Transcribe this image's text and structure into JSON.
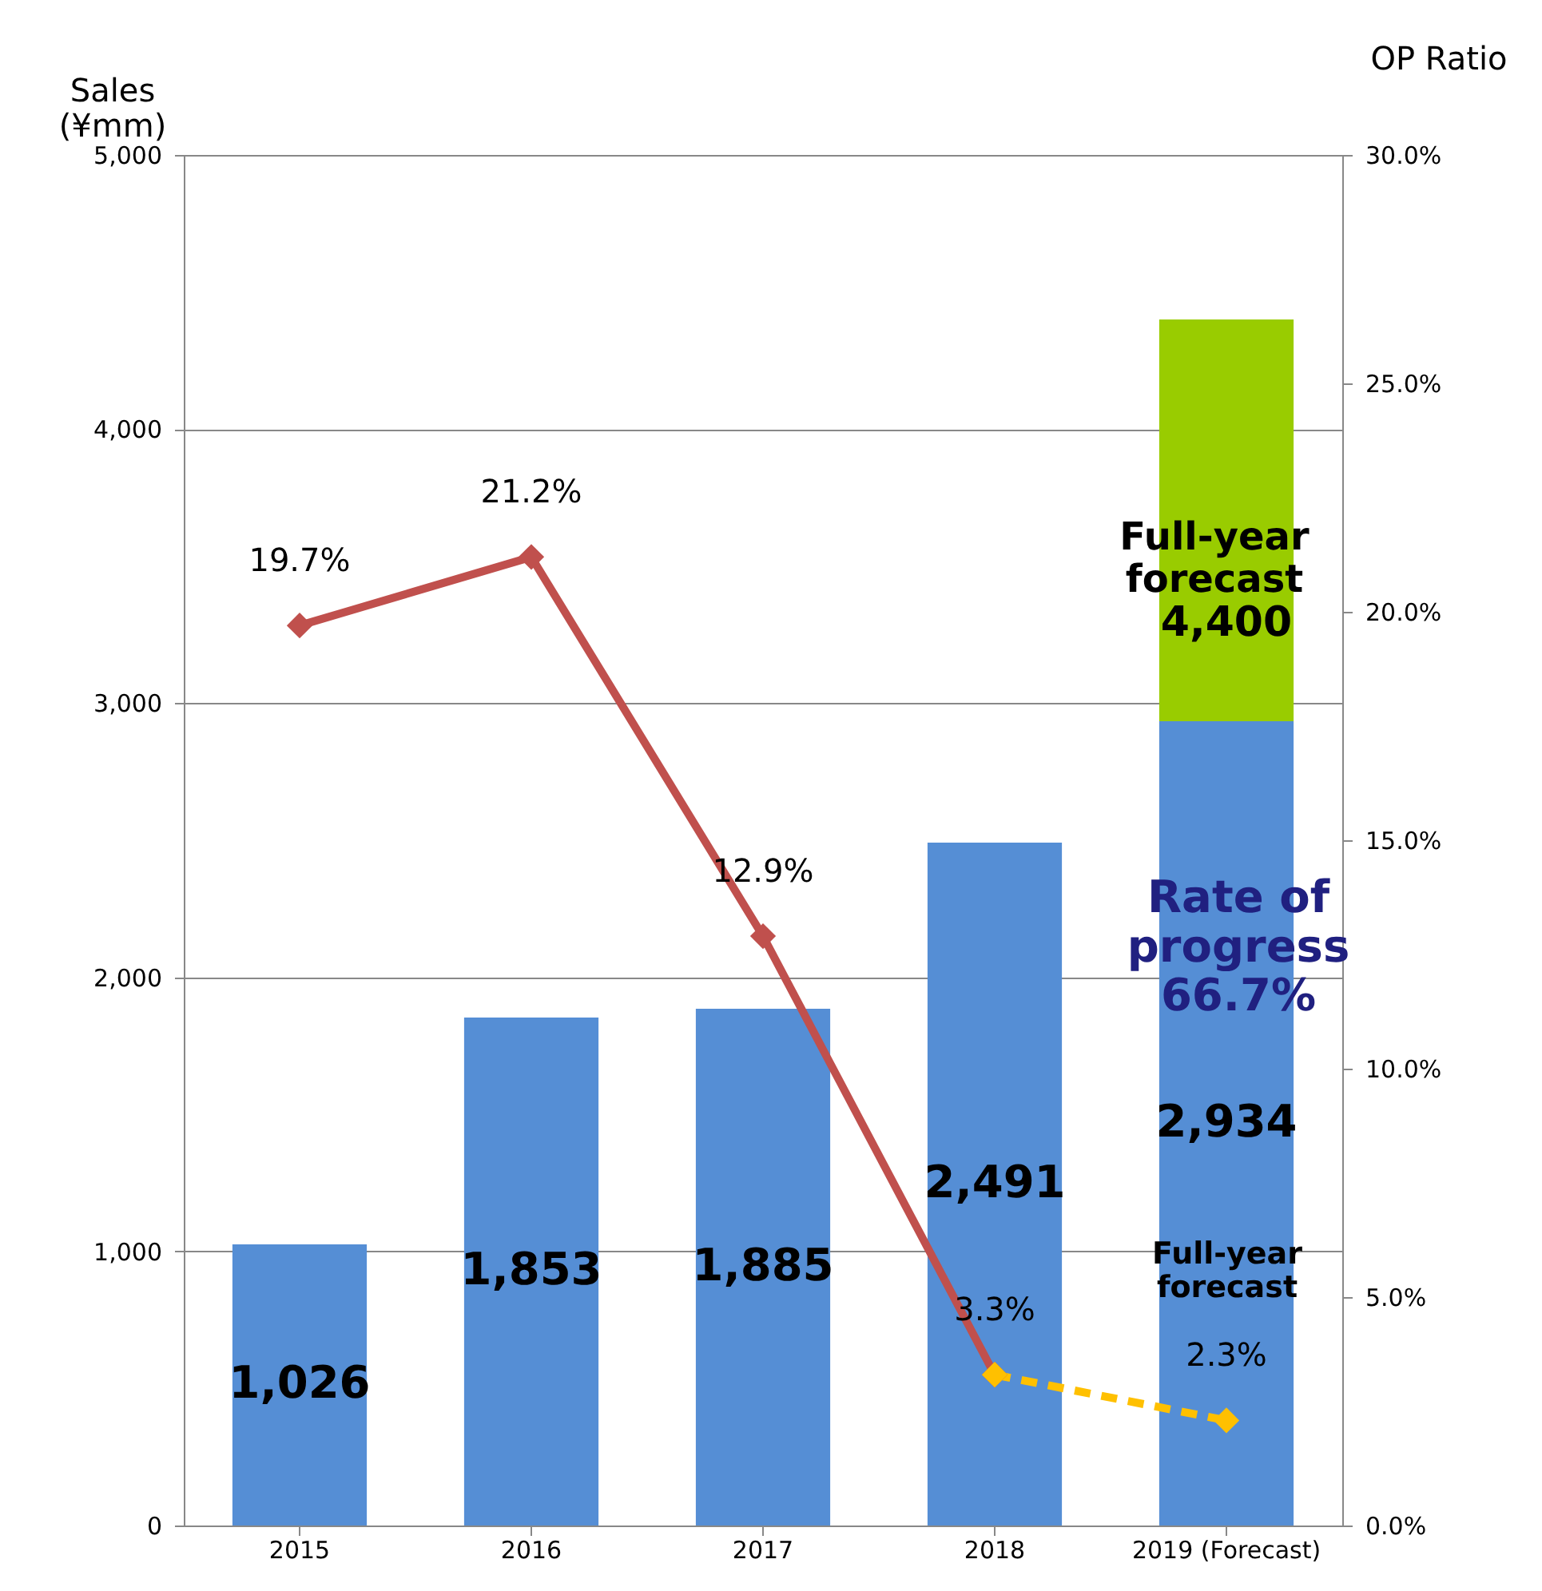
{
  "chart_data": {
    "type": "bar",
    "stacked": true,
    "ylabel": "Sales\n(¥mm)",
    "y2label": "OP Ratio",
    "categories": [
      "2015",
      "2016",
      "2017",
      "2018",
      "2019 (Forecast)"
    ],
    "series": [
      {
        "color": "#558ed5",
        "values": [
          1026,
          1853,
          1885,
          2491,
          2934
        ],
        "value_labels": [
          "1,026",
          "1,853",
          "1,885",
          "2,491",
          "2,934"
        ]
      },
      {
        "color": "#99cc00",
        "values": [
          null,
          null,
          null,
          null,
          1466
        ]
      },
      {
        "type": "line",
        "axis": "y2",
        "color": "#c0504d",
        "line_style": "solid",
        "marker": "diamond",
        "values": [
          19.7,
          21.2,
          12.9,
          3.3,
          null
        ],
        "value_labels": [
          "19.7%",
          "21.2%",
          "12.9%",
          "3.3%",
          null
        ]
      },
      {
        "type": "line",
        "axis": "y2",
        "color": "#ffc000",
        "line_style": "dashed",
        "marker": "diamond",
        "values": [
          null,
          null,
          null,
          3.3,
          2.3
        ],
        "value_labels": [
          null,
          null,
          null,
          null,
          "2.3%"
        ]
      }
    ],
    "totals": [
      null,
      null,
      null,
      null,
      "4,400"
    ],
    "annotations": [
      "Full-year\nforecast",
      "Rate of\nprogress\n66.7%",
      "Full-year\nforecast"
    ],
    "ylim": [
      0,
      5000
    ],
    "yticks": [
      {
        "value": 0,
        "label": "0"
      },
      {
        "value": 1000,
        "label": "1,000"
      },
      {
        "value": 2000,
        "label": "2,000"
      },
      {
        "value": 3000,
        "label": "3,000"
      },
      {
        "value": 4000,
        "label": "4,000"
      },
      {
        "value": 5000,
        "label": "5,000"
      }
    ],
    "y2lim": [
      0,
      30
    ],
    "y2ticks": [
      {
        "value": 0,
        "label": "0.0%"
      },
      {
        "value": 5,
        "label": "5.0%"
      },
      {
        "value": 10,
        "label": "10.0%"
      },
      {
        "value": 15,
        "label": "15.0%"
      },
      {
        "value": 20,
        "label": "20.0%"
      },
      {
        "value": 25,
        "label": "25.0%"
      },
      {
        "value": 30,
        "label": "30.0%"
      }
    ],
    "grid": "y",
    "legend": false
  }
}
